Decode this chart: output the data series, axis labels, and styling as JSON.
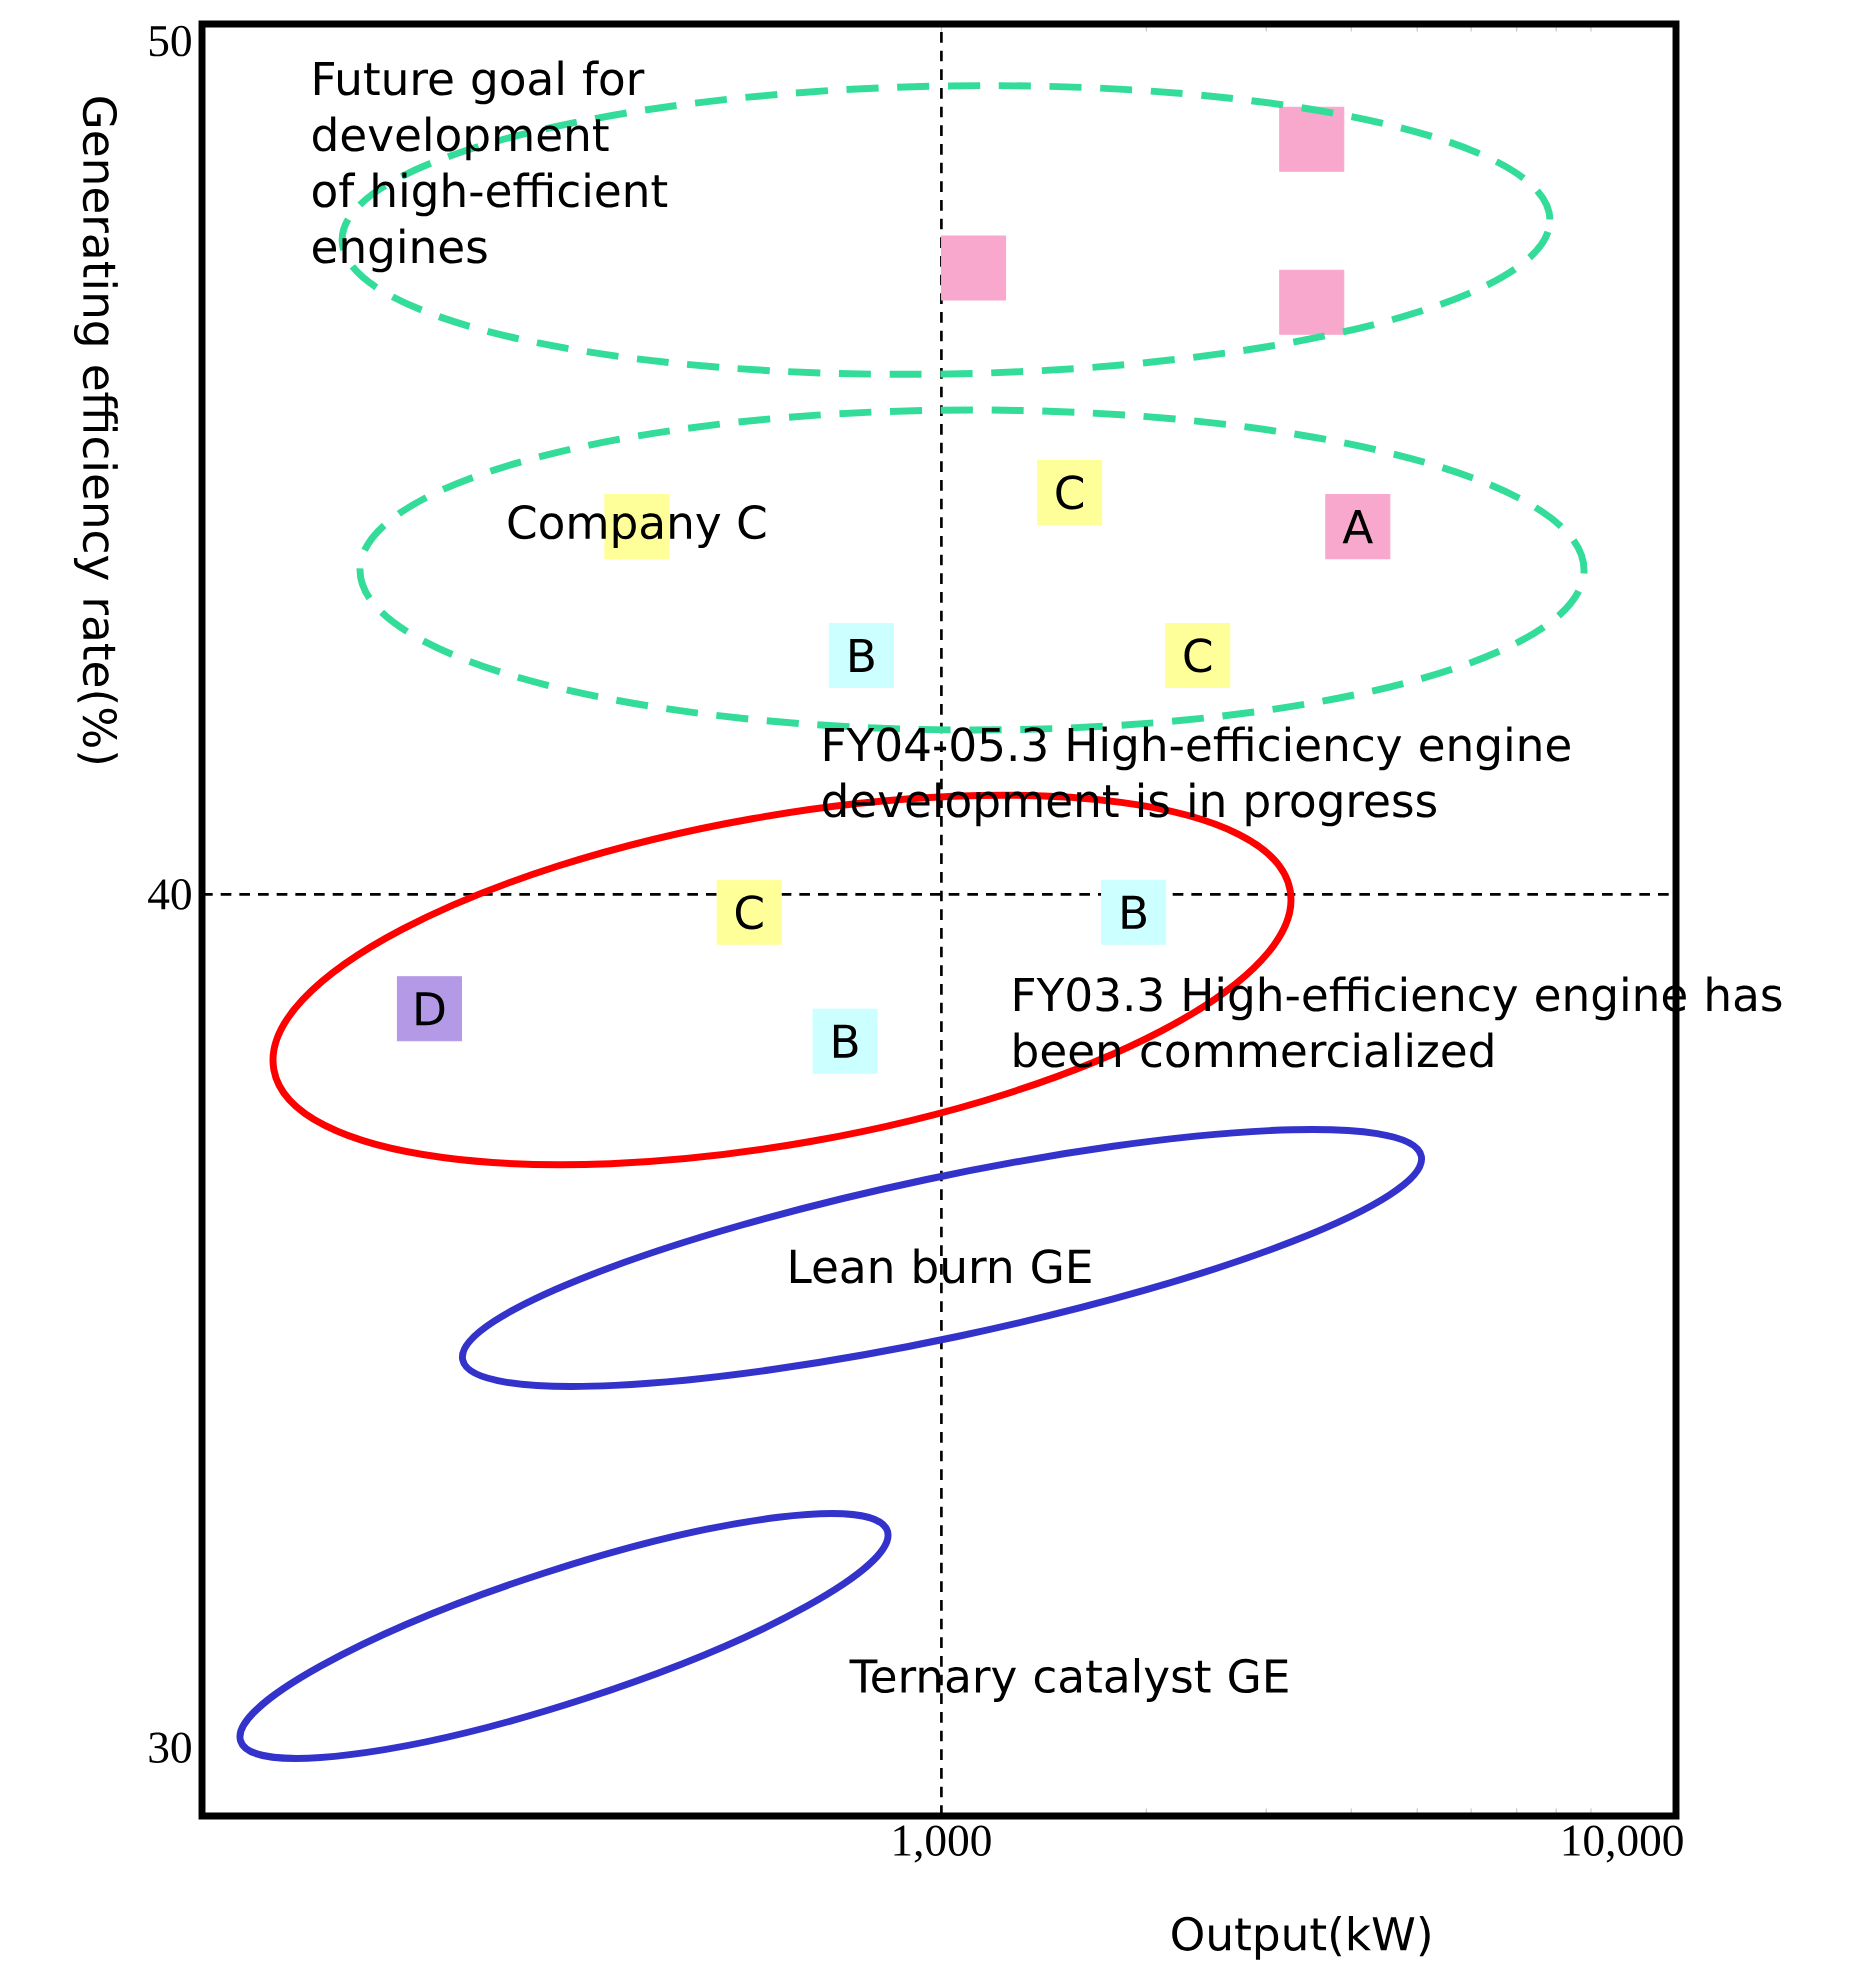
{
  "chart_data": {
    "type": "scatter",
    "log": "x",
    "xlabel": "Output(kW)",
    "ylabel": "Generating efficiency rate(%)",
    "xlim": [
      82,
      12000
    ],
    "ylim": [
      29.2,
      50.2
    ],
    "xticks": [
      {
        "value": 1000,
        "label": "1,000"
      },
      {
        "value": 10000,
        "label": "10,000"
      }
    ],
    "yticks": [
      30,
      40,
      50
    ],
    "ref_lines": [
      {
        "axis": "x",
        "value": 1000,
        "color": "#000000",
        "line_style": "dashed"
      },
      {
        "axis": "y",
        "value": 40,
        "color": "#000000",
        "line_style": "dashed"
      }
    ],
    "series": [
      {
        "marker": "square",
        "x": [
          3500,
          1115,
          3500,
          357,
          1543,
          4090,
          763,
          2380,
          522,
          1916,
          177,
          722
        ],
        "values": [
          48.85,
          47.34,
          46.94,
          44.31,
          44.71,
          44.31,
          42.8,
          42.8,
          39.79,
          39.79,
          38.66,
          38.28
        ],
        "colors": [
          "#f8a8cc",
          "#f8a8cc",
          "#f8a8cc",
          "#ffff99",
          "#ffff99",
          "#f8a8cc",
          "#ccffff",
          "#ffff99",
          "#ffff99",
          "#ccffff",
          "#b399e6",
          "#ccffff"
        ],
        "value_labels": [
          null,
          null,
          null,
          "Company C",
          "C",
          "A",
          "B",
          "C",
          "C",
          "B",
          "D",
          "B"
        ]
      }
    ],
    "annotations": [
      "Future goal for development of high-efficient engines",
      "FY04-05.3 High-efficiency engine development is in progress",
      "FY03.3 High-efficiency engine has been commercialized",
      "Lean burn GE",
      "Ternary catalyst GE"
    ]
  }
}
